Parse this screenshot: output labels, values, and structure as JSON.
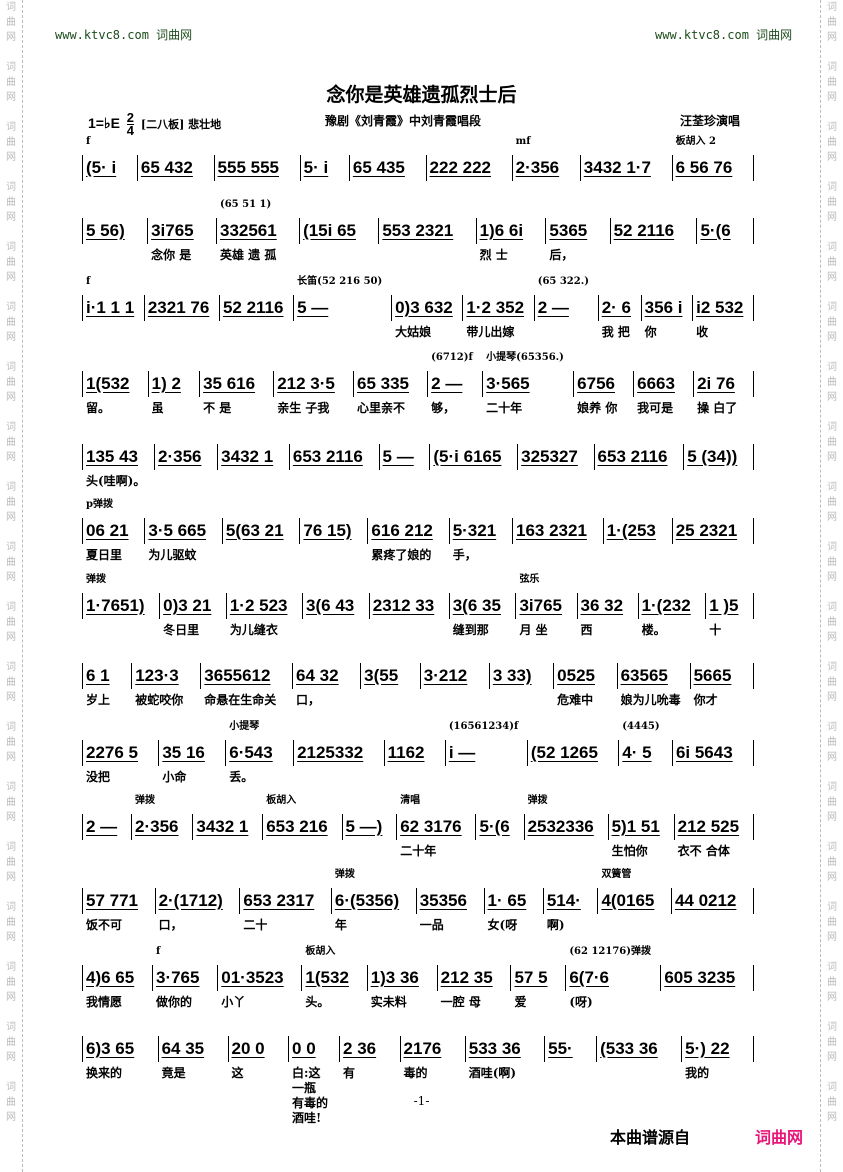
{
  "watermark": {
    "chars": [
      "词",
      "曲",
      "网"
    ]
  },
  "header": {
    "site_left": "www.ktvc8.com 词曲网",
    "site_right": "www.ktvc8.com 词曲网"
  },
  "title": "念你是英雄遗孤烈士后",
  "meta": {
    "key": "1=♭E",
    "time_top": "2",
    "time_bottom": "4",
    "tempo": "[二八板] 悲壮地",
    "subtitle": "豫剧《刘青霞》中刘青霞唱段",
    "singer": "汪荃珍演唱"
  },
  "rows": [
    {
      "measures": [
        {
          "n": "(5· i",
          "a": "f"
        },
        {
          "n": "65 432"
        },
        {
          "n": "555 555"
        },
        {
          "n": "5· i"
        },
        {
          "n": "65 435"
        },
        {
          "n": "222 222"
        },
        {
          "n": "2·356",
          "a": "mf"
        },
        {
          "n": "3432 1·7"
        },
        {
          "n": "6 56 76",
          "a": "板胡入 2"
        }
      ]
    },
    {
      "measures": [
        {
          "n": "5 56)"
        },
        {
          "n": "3i765",
          "l": "念你 是"
        },
        {
          "n": "332561",
          "l": "英雄 遗 孤",
          "a": "(65 51 1)"
        },
        {
          "n": "(15i 65"
        },
        {
          "n": "553 2321"
        },
        {
          "n": "1)6 6i",
          "l": "烈 士"
        },
        {
          "n": "5365",
          "l": "后，"
        },
        {
          "n": "52 2116"
        },
        {
          "n": "5·(6"
        }
      ]
    },
    {
      "measures": [
        {
          "n": "i·1 1 1",
          "a": "f"
        },
        {
          "n": "2321 76"
        },
        {
          "n": "52 2116"
        },
        {
          "n": "5 —",
          "a": "长笛(52 216 50)"
        },
        {
          "n": "0)3 632",
          "l": "大姑娘"
        },
        {
          "n": "1·2 352",
          "l": "带儿出嫁"
        },
        {
          "n": "2 —",
          "a": "(65 322.)"
        },
        {
          "n": "2· 6",
          "l": "我 把"
        },
        {
          "n": "356 i",
          "l": "你"
        },
        {
          "n": "i2 532",
          "l": "收"
        }
      ]
    },
    {
      "measures": [
        {
          "n": "1(532",
          "l": "留。"
        },
        {
          "n": "1) 2",
          "l": "虽"
        },
        {
          "n": "35 616",
          "l": "不 是"
        },
        {
          "n": "212 3·5",
          "l": "亲生 子我"
        },
        {
          "n": "65 335",
          "l": "心里亲不"
        },
        {
          "n": "2 —",
          "l": "够，",
          "a": "(6712)f"
        },
        {
          "n": "3·565",
          "l": "二十年",
          "a": "小提琴(65356.)"
        },
        {
          "n": "6756",
          "l": "娘养 你"
        },
        {
          "n": "6663",
          "l": "我可是"
        },
        {
          "n": "2i 76",
          "l": "操 白了"
        }
      ]
    },
    {
      "measures": [
        {
          "n": "135 43",
          "l": "头(哇啊)。"
        },
        {
          "n": "2·356"
        },
        {
          "n": "3432 1"
        },
        {
          "n": "653 2116"
        },
        {
          "n": "5 —"
        },
        {
          "n": "(5·i 6165"
        },
        {
          "n": "325327"
        },
        {
          "n": "653 2116"
        },
        {
          "n": "5 (34))"
        }
      ]
    },
    {
      "measures": [
        {
          "n": "06 21",
          "l": "夏日里",
          "a": "p弹拨"
        },
        {
          "n": "3·5 665",
          "l": "为儿驱蚊"
        },
        {
          "n": "5(63 21"
        },
        {
          "n": "76 15)"
        },
        {
          "n": "616 212",
          "l": "累疼了娘的"
        },
        {
          "n": "5·321",
          "l": "手，"
        },
        {
          "n": "163 2321"
        },
        {
          "n": "1·(253"
        },
        {
          "n": "25 2321"
        }
      ]
    },
    {
      "measures": [
        {
          "n": "1·7651)",
          "a": "弹拨"
        },
        {
          "n": "0)3 21",
          "l": "冬日里"
        },
        {
          "n": "1·2 523",
          "l": "为儿缝衣"
        },
        {
          "n": "3(6 43"
        },
        {
          "n": "2312 33"
        },
        {
          "n": "3(6 35",
          "l": "缝到那"
        },
        {
          "n": "3i765",
          "l": "月 坐",
          "a": "弦乐"
        },
        {
          "n": "36 32",
          "l": "西"
        },
        {
          "n": "1·(232",
          "l": "楼。"
        },
        {
          "n": "1 )5",
          "l": "十"
        }
      ]
    },
    {
      "measures": [
        {
          "n": "6 1",
          "l": "岁上"
        },
        {
          "n": "123·3",
          "l": "被蛇咬你"
        },
        {
          "n": "3655612",
          "l": "命悬在生命关"
        },
        {
          "n": "64 32",
          "l": "口，"
        },
        {
          "n": "3(55"
        },
        {
          "n": "3·212"
        },
        {
          "n": "3 33)"
        },
        {
          "n": "0525",
          "l": "危难中"
        },
        {
          "n": "63565",
          "l": "娘为儿吮毒"
        },
        {
          "n": "5665",
          "l": "你才"
        }
      ]
    },
    {
      "measures": [
        {
          "n": "2276 5",
          "l": "没把"
        },
        {
          "n": "35 16",
          "l": "小命"
        },
        {
          "n": "6·543",
          "l": "丢。",
          "a": "小提琴"
        },
        {
          "n": "2125332"
        },
        {
          "n": "1162"
        },
        {
          "n": "i —",
          "a": "(16561234)f"
        },
        {
          "n": "(52 1265"
        },
        {
          "n": "4· 5",
          "a": "(4445)"
        },
        {
          "n": "6i 5643"
        }
      ]
    },
    {
      "measures": [
        {
          "n": "2 —"
        },
        {
          "n": "2·356",
          "a": "弹拨"
        },
        {
          "n": "3432 1"
        },
        {
          "n": "653 216",
          "a": "板胡入"
        },
        {
          "n": "5 —)"
        },
        {
          "n": "62 3176",
          "l": "二十年",
          "a": "清唱"
        },
        {
          "n": "5·(6"
        },
        {
          "n": "2532336",
          "a": "弹拨"
        },
        {
          "n": "5)1 51",
          "l": "生怕你"
        },
        {
          "n": "212 525",
          "l": "衣不 合体"
        }
      ]
    },
    {
      "measures": [
        {
          "n": "57 771",
          "l": "饭不可"
        },
        {
          "n": "2·(1712)",
          "l": "口，"
        },
        {
          "n": "653 2317",
          "l": "二十"
        },
        {
          "n": "6·(5356)",
          "l": "年",
          "a": "弹拨"
        },
        {
          "n": "35356",
          "l": "一品"
        },
        {
          "n": "1· 65",
          "l": "女(呀"
        },
        {
          "n": "514·",
          "l": "啊)"
        },
        {
          "n": "4(0165",
          "a": "双簧管"
        },
        {
          "n": "44 0212"
        }
      ]
    },
    {
      "measures": [
        {
          "n": "4)6 65",
          "l": "我情愿"
        },
        {
          "n": "3·765",
          "l": "做你的",
          "a": "f"
        },
        {
          "n": "01·3523",
          "l": "小丫"
        },
        {
          "n": "1(532",
          "l": "头。",
          "a": "板胡入"
        },
        {
          "n": "1)3 36",
          "l": "实未料"
        },
        {
          "n": "212 35",
          "l": "一腔 母"
        },
        {
          "n": "57 5",
          "l": "爱"
        },
        {
          "n": "6(7·6",
          "l": "(呀)",
          "a": "(62 12176)弹拨"
        },
        {
          "n": "605 3235"
        }
      ]
    },
    {
      "measures": [
        {
          "n": "6)3 65",
          "l": "换来的"
        },
        {
          "n": "64 35",
          "l": "竟是"
        },
        {
          "n": "20 0",
          "l": "这"
        },
        {
          "n": "0 0",
          "l": "白:这一瓶 有毒的酒哇!"
        },
        {
          "n": "2 36",
          "l": "有"
        },
        {
          "n": "2176",
          "l": "毒的"
        },
        {
          "n": "533 36",
          "l": "酒哇(啊)"
        },
        {
          "n": "55·"
        },
        {
          "n": "(533 36"
        },
        {
          "n": "5·) 22",
          "l": "我的"
        }
      ]
    }
  ],
  "footer": {
    "page": "-1-",
    "source": "本曲谱源自",
    "brand": "词曲网",
    "brand_color": "#e8157a"
  }
}
